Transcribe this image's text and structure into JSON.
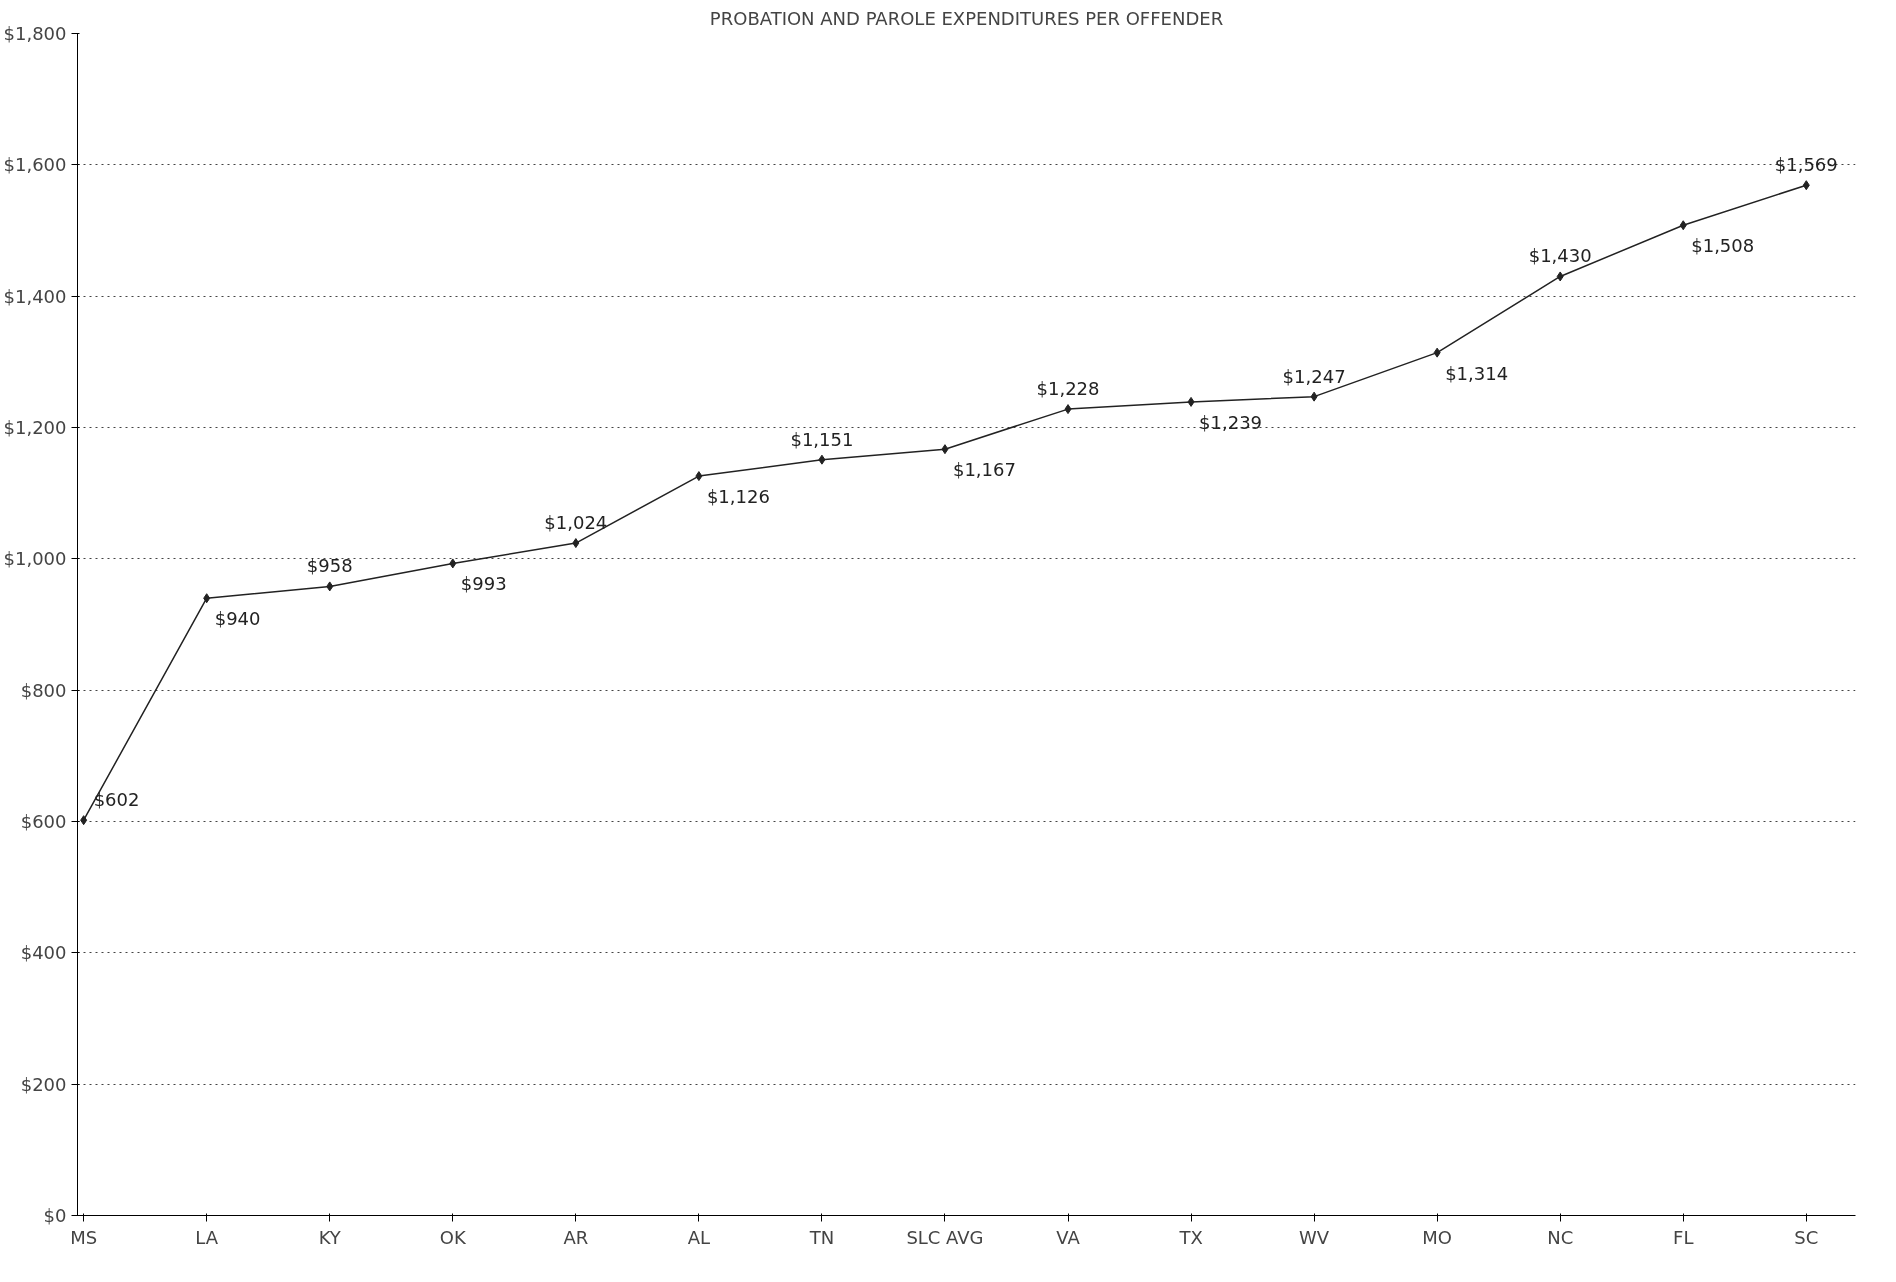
{
  "chart_data": {
    "type": "line",
    "title": "PROBATION AND PAROLE EXPENDITURES PER OFFENDER",
    "categories": [
      "MS",
      "LA",
      "KY",
      "OK",
      "AR",
      "AL",
      "TN",
      "SLC AVG",
      "VA",
      "TX",
      "WV",
      "MO",
      "NC",
      "FL",
      "SC"
    ],
    "series": [
      {
        "color": "#222222",
        "values": [
          602,
          940,
          958,
          993,
          1024,
          1126,
          1151,
          1167,
          1228,
          1239,
          1247,
          1314,
          1430,
          1508,
          1569
        ]
      }
    ],
    "ylim": [
      0,
      1800
    ],
    "yticks": [
      {
        "value": 0,
        "label": "$0"
      },
      {
        "value": 200,
        "label": "$200"
      },
      {
        "value": 400,
        "label": "$400"
      },
      {
        "value": 600,
        "label": "$600"
      },
      {
        "value": 800,
        "label": "$800"
      },
      {
        "value": 1000,
        "label": "$1,000"
      },
      {
        "value": 1200,
        "label": "$1,200"
      },
      {
        "value": 1400,
        "label": "$1,400"
      },
      {
        "value": 1600,
        "label": "$1,600"
      },
      {
        "value": 1800,
        "label": "$1,800"
      }
    ],
    "value_labels": [
      "$602",
      "$940",
      "$958",
      "$993",
      "$1,024",
      "$1,126",
      "$1,151",
      "$1,167",
      "$1,228",
      "$1,239",
      "$1,247",
      "$1,314",
      "$1,430",
      "$1,508",
      "$1,569"
    ],
    "grid": "y",
    "marker": "diamond",
    "line_style": "solid"
  }
}
